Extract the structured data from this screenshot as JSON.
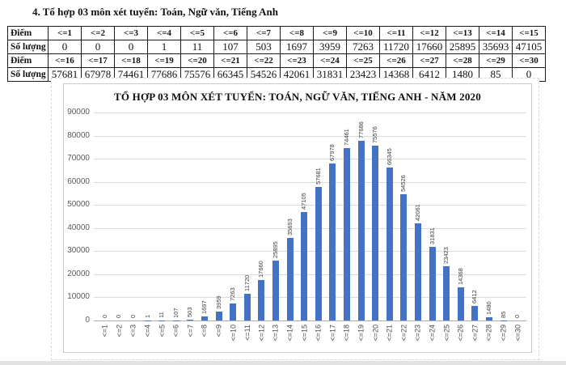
{
  "page": {
    "heading": "4. Tổ hợp 03 môn xét tuyển: Toán, Ngữ văn, Tiếng Anh"
  },
  "table": {
    "rows": [
      {
        "label": "Điểm",
        "bold": true,
        "cells": [
          "<=1",
          "<=2",
          "<=3",
          "<=4",
          "<=5",
          "<=6",
          "<=7",
          "<=8",
          "<=9",
          "<=10",
          "<=11",
          "<=12",
          "<=13",
          "<=14",
          "<=15"
        ]
      },
      {
        "label": "Số lượng",
        "bold": false,
        "cells": [
          "0",
          "0",
          "0",
          "1",
          "11",
          "107",
          "503",
          "1697",
          "3959",
          "7263",
          "11720",
          "17660",
          "25895",
          "35693",
          "47105"
        ]
      },
      {
        "label": "Điểm",
        "bold": true,
        "cells": [
          "<=16",
          "<=17",
          "<=18",
          "<=19",
          "<=20",
          "<=21",
          "<=22",
          "<=23",
          "<=24",
          "<=25",
          "<=26",
          "<=27",
          "<=28",
          "<=29",
          "<=30"
        ]
      },
      {
        "label": "Số lượng",
        "bold": false,
        "cells": [
          "57681",
          "67978",
          "74461",
          "77686",
          "75576",
          "66345",
          "54526",
          "42061",
          "31831",
          "23423",
          "14368",
          "6412",
          "1480",
          "85",
          "0"
        ]
      }
    ]
  },
  "chart_data": {
    "type": "bar",
    "title": "TỔ HỢP 03 MÔN XÉT TUYỂN: TOÁN, NGỮ VĂN, TIẾNG ANH - NĂM 2020",
    "categories": [
      "<=1",
      "<=2",
      "<=3",
      "<=4",
      "<=5",
      "<=6",
      "<=7",
      "<=8",
      "<=9",
      "<=10",
      "<=11",
      "<=12",
      "<=13",
      "<=14",
      "<=15",
      "<=16",
      "<=17",
      "<=18",
      "<=19",
      "<=20",
      "<=21",
      "<=22",
      "<=23",
      "<=24",
      "<=25",
      "<=26",
      "<=27",
      "<=28",
      "<=29",
      "<=30"
    ],
    "values": [
      0,
      0,
      0,
      1,
      11,
      107,
      503,
      1697,
      3959,
      7263,
      11720,
      17660,
      25895,
      35693,
      47105,
      57681,
      67978,
      74461,
      77686,
      75576,
      66345,
      54526,
      42061,
      31831,
      23423,
      14368,
      6412,
      1480,
      85,
      0
    ],
    "xlabel": "",
    "ylabel": "",
    "ylim": [
      0,
      90000
    ],
    "yticks": [
      0,
      10000,
      20000,
      30000,
      40000,
      50000,
      60000,
      70000,
      80000,
      90000
    ],
    "grid": true,
    "legend_position": "none",
    "data_labels": "rotated-vertical",
    "bar_color": "#4472C4",
    "gridline_color": "#dcdcdc",
    "axis_text_color": "#595959"
  }
}
